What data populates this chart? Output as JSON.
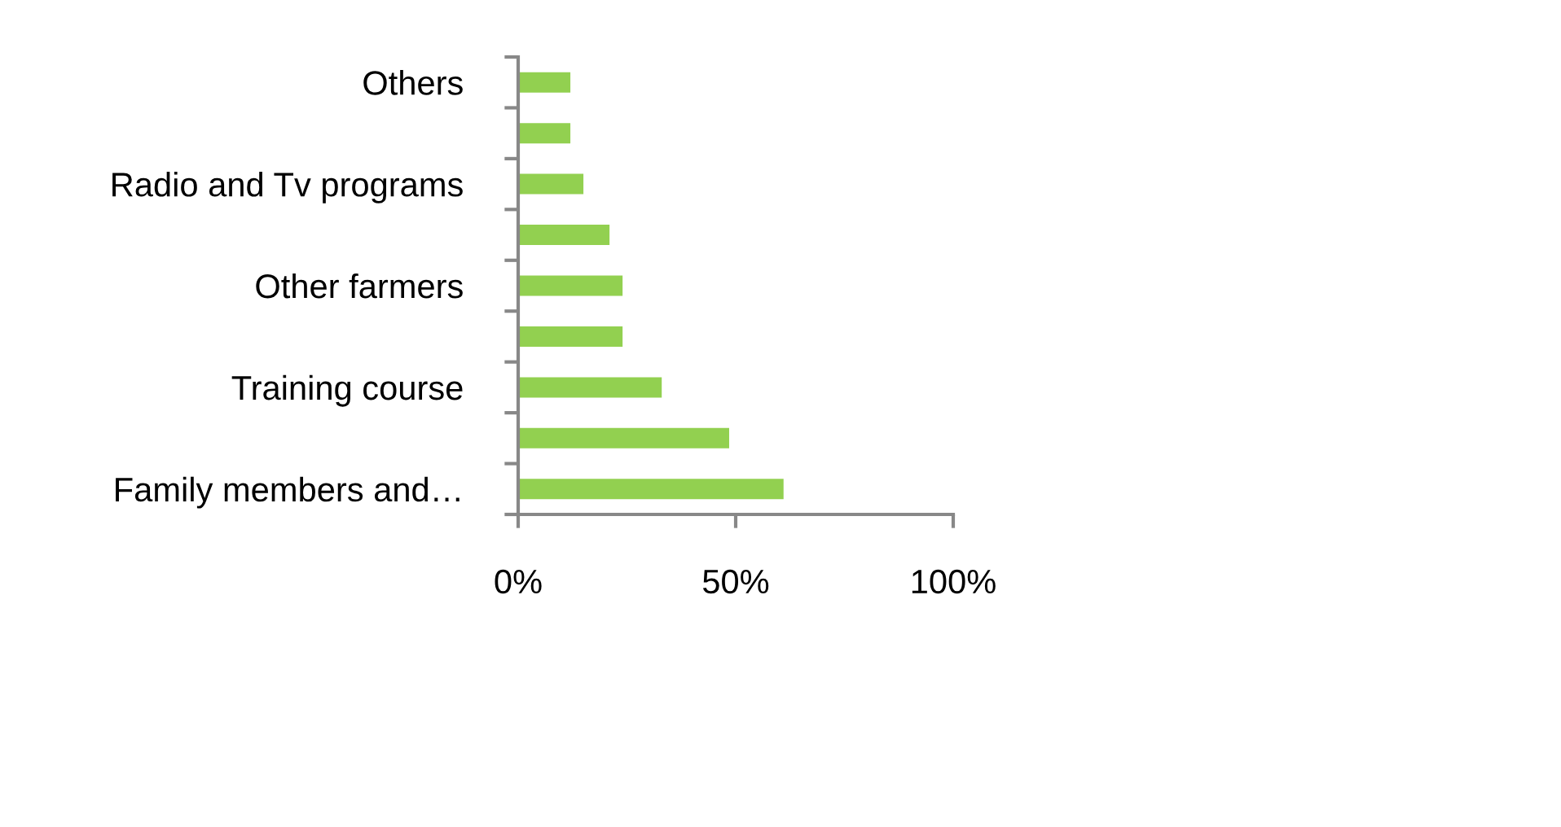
{
  "chart_data": {
    "type": "bar",
    "orientation": "horizontal",
    "categories": [
      "Others",
      null,
      "Radio and Tv programs",
      null,
      "Other farmers",
      null,
      "Training course",
      null,
      "Family members and…"
    ],
    "values": [
      12,
      12,
      15,
      21,
      24,
      24,
      33,
      48.5,
      61
    ],
    "color": "#92d050",
    "xlim": [
      0,
      100
    ],
    "xticks": [
      {
        "value": 0,
        "label": "0%"
      },
      {
        "value": 50,
        "label": "50%"
      },
      {
        "value": 100,
        "label": "100%"
      }
    ],
    "grid": false,
    "legend": false
  }
}
